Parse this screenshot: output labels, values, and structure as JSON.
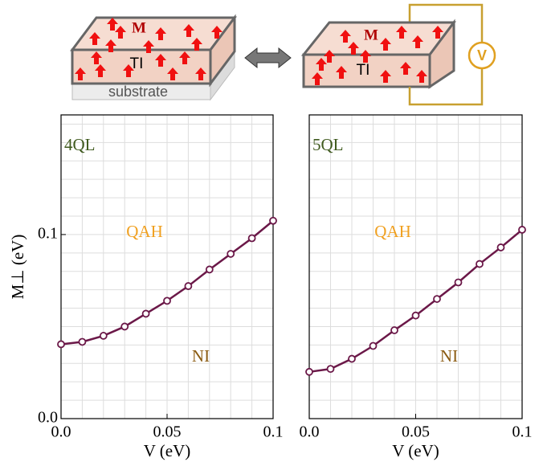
{
  "diagram": {
    "left": {
      "m_label": "M",
      "ti_label": "TI",
      "substrate_label": "substrate"
    },
    "right": {
      "m_label": "M",
      "ti_label": "TI",
      "meter_label": "V"
    }
  },
  "chart_data": [
    {
      "type": "line",
      "xlabel": "V (eV)",
      "ylabel": "M⊥ (eV)",
      "annotations": [
        {
          "text": "4QL",
          "color": "#3f5a1e"
        },
        {
          "text": "QAH",
          "color": "#f0a020"
        },
        {
          "text": "NI",
          "color": "#8a5a10"
        }
      ],
      "x": [
        0,
        0.01,
        0.02,
        0.03,
        0.04,
        0.05,
        0.06,
        0.07,
        0.08,
        0.09,
        0.1
      ],
      "series": [
        {
          "color": "#6b1848",
          "values": [
            0.0404,
            0.0417,
            0.045,
            0.05,
            0.057,
            0.064,
            0.072,
            0.081,
            0.0895,
            0.098,
            0.1075
          ]
        }
      ],
      "xlim": [
        0,
        0.1
      ],
      "ylim": [
        0,
        0.165
      ],
      "xticks": [
        {
          "value": 0,
          "label": "0.0"
        },
        0.05,
        0.1
      ],
      "yticks": [
        {
          "value": 0,
          "label": "0.0"
        },
        0.1
      ],
      "grid": true
    },
    {
      "type": "line",
      "xlabel": "V (eV)",
      "annotations": [
        {
          "text": "5QL",
          "color": "#3f5a1e"
        },
        {
          "text": "QAH",
          "color": "#f0a020"
        },
        {
          "text": "NI",
          "color": "#8a5a10"
        }
      ],
      "x": [
        0,
        0.01,
        0.02,
        0.03,
        0.04,
        0.05,
        0.06,
        0.07,
        0.08,
        0.09,
        0.1
      ],
      "series": [
        {
          "color": "#6b1848",
          "values": [
            0.0254,
            0.027,
            0.0325,
            0.0395,
            0.048,
            0.056,
            0.065,
            0.074,
            0.084,
            0.093,
            0.1026
          ]
        }
      ],
      "xlim": [
        0,
        0.1
      ],
      "ylim": [
        0,
        0.165
      ],
      "xticks": [
        {
          "value": 0,
          "label": "0.0"
        },
        0.05,
        0.1
      ],
      "yticks": [],
      "grid": true
    }
  ]
}
